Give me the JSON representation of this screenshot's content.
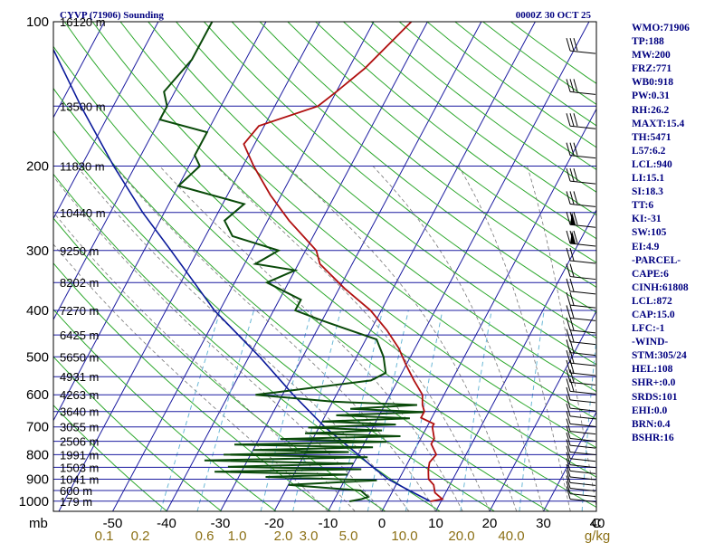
{
  "title_left": "CYVP (71906) Sounding",
  "title_right": "0000Z 30 OCT 25",
  "chart_data": {
    "type": "skew-t",
    "pressure_labels": [
      "100",
      "200",
      "300",
      "400",
      "500",
      "600",
      "700",
      "800",
      "900",
      "1000"
    ],
    "temperature_labels": [
      "-50",
      "-40",
      "-30",
      "-20",
      "-10",
      "0",
      "10",
      "20",
      "30",
      "40",
      "C"
    ],
    "mixing_ratio_labels": [
      "0.1",
      "0.2",
      "0.6",
      "1.0",
      "2.0",
      "3.0",
      "5.0",
      "10.0",
      "20.0",
      "40.0",
      "g/kg"
    ],
    "pressure_unit": "mb",
    "height_labels": [
      {
        "p": 100,
        "label": "16120 m"
      },
      {
        "p": 150,
        "label": "13500 m"
      },
      {
        "p": 200,
        "label": "11830 m"
      },
      {
        "p": 250,
        "label": "10440 m"
      },
      {
        "p": 300,
        "label": "9250 m"
      },
      {
        "p": 350,
        "label": "8202 m"
      },
      {
        "p": 400,
        "label": "7270 m"
      },
      {
        "p": 450,
        "label": "6425 m"
      },
      {
        "p": 500,
        "label": "5650 m"
      },
      {
        "p": 550,
        "label": "4931 m"
      },
      {
        "p": 600,
        "label": "4263 m"
      },
      {
        "p": 650,
        "label": "3640 m"
      },
      {
        "p": 700,
        "label": "3055 m"
      },
      {
        "p": 750,
        "label": "2506 m"
      },
      {
        "p": 800,
        "label": "1991 m"
      },
      {
        "p": 850,
        "label": "1503 m"
      },
      {
        "p": 900,
        "label": "1041 m"
      },
      {
        "p": 950,
        "label": "600 m"
      },
      {
        "p": 1000,
        "label": "179 m"
      }
    ],
    "temperature_profile": [
      [
        1001,
        8
      ],
      [
        990,
        10
      ],
      [
        960,
        8
      ],
      [
        925,
        7
      ],
      [
        900,
        5.5
      ],
      [
        880,
        5
      ],
      [
        860,
        4.5
      ],
      [
        830,
        4
      ],
      [
        800,
        4.5
      ],
      [
        760,
        2.5
      ],
      [
        740,
        2.5
      ],
      [
        700,
        1
      ],
      [
        690,
        1
      ],
      [
        670,
        -2
      ],
      [
        650,
        -2
      ],
      [
        630,
        -3
      ],
      [
        600,
        -4
      ],
      [
        560,
        -7
      ],
      [
        520,
        -10
      ],
      [
        480,
        -13
      ],
      [
        440,
        -17
      ],
      [
        400,
        -22
      ],
      [
        360,
        -29
      ],
      [
        320,
        -36
      ],
      [
        300,
        -38
      ],
      [
        260,
        -46
      ],
      [
        230,
        -52
      ],
      [
        200,
        -58
      ],
      [
        180,
        -62
      ],
      [
        165,
        -61
      ],
      [
        150,
        -52
      ],
      [
        140,
        -50
      ],
      [
        125,
        -47
      ],
      [
        100,
        -43
      ]
    ],
    "dewpoint_profile": [
      [
        1001,
        -7
      ],
      [
        990,
        -5
      ],
      [
        980,
        -4
      ],
      [
        950,
        -6
      ],
      [
        925,
        -20
      ],
      [
        905,
        -4
      ],
      [
        890,
        -25
      ],
      [
        880,
        -10
      ],
      [
        868,
        -35
      ],
      [
        858,
        -8
      ],
      [
        848,
        -33
      ],
      [
        835,
        -10
      ],
      [
        822,
        -38
      ],
      [
        810,
        -8
      ],
      [
        800,
        -35
      ],
      [
        790,
        -12
      ],
      [
        782,
        -30
      ],
      [
        772,
        -8
      ],
      [
        762,
        -34
      ],
      [
        752,
        -6
      ],
      [
        742,
        -26
      ],
      [
        732,
        -4
      ],
      [
        722,
        -22
      ],
      [
        712,
        -8
      ],
      [
        702,
        -22
      ],
      [
        692,
        -6
      ],
      [
        682,
        -20
      ],
      [
        672,
        -4
      ],
      [
        662,
        -18
      ],
      [
        652,
        -2
      ],
      [
        642,
        -16
      ],
      [
        630,
        -4
      ],
      [
        620,
        -20
      ],
      [
        600,
        -35
      ],
      [
        590,
        -30
      ],
      [
        560,
        -15
      ],
      [
        540,
        -13
      ],
      [
        500,
        -15
      ],
      [
        460,
        -18
      ],
      [
        420,
        -30
      ],
      [
        400,
        -36
      ],
      [
        380,
        -36
      ],
      [
        350,
        -44
      ],
      [
        330,
        -40
      ],
      [
        320,
        -48
      ],
      [
        300,
        -45
      ],
      [
        280,
        -55
      ],
      [
        260,
        -58
      ],
      [
        240,
        -56
      ],
      [
        220,
        -70
      ],
      [
        200,
        -68
      ],
      [
        190,
        -70
      ],
      [
        170,
        -70
      ],
      [
        160,
        -80
      ],
      [
        150,
        -80
      ],
      [
        140,
        -82
      ],
      [
        120,
        -80
      ],
      [
        100,
        -80
      ]
    ],
    "parcel_profile": [
      [
        1001,
        8
      ],
      [
        940,
        2
      ],
      [
        900,
        -2
      ],
      [
        850,
        -6
      ],
      [
        800,
        -10
      ],
      [
        700,
        -19
      ],
      [
        600,
        -28
      ],
      [
        500,
        -38
      ],
      [
        400,
        -51
      ],
      [
        300,
        -65
      ],
      [
        250,
        -74
      ],
      [
        200,
        -84
      ],
      [
        150,
        -96
      ],
      [
        100,
        -112
      ]
    ],
    "wind_barbs": "right-hand column, winds from the west-northwest increasing aloft",
    "side_panel": [
      "WMO:71906",
      "TP:188",
      "MW:200",
      "FRZ:771",
      "WB0:918",
      "PW:0.31",
      "RH:26.2",
      "MAXT:15.4",
      "TH:5471",
      "L57:6.2",
      "LCL:940",
      "LI:15.1",
      "SI:18.3",
      "TT:6",
      "KI:-31",
      "SW:105",
      "EI:4.9",
      "-PARCEL-",
      "CAPE:6",
      "CINH:61808",
      "LCL:872",
      "CAP:15.0",
      "LFC:-1",
      "-WIND-",
      "STM:305/24",
      "HEL:108",
      "SHR+:0.0",
      "SRDS:101",
      "EHI:0.0",
      "BRN:0.4",
      "BSHR:16"
    ]
  },
  "colors": {
    "isobar": "#1c1ca0",
    "isotherm": "#1c1ca0",
    "dry_adiabat": "#2ea82e",
    "moist_adiabat": "#6bb8d6",
    "mixing_ratio": "#777777",
    "temperature": "#b01010",
    "dewpoint": "#0a4a0a",
    "parcel": "#0a1a9a",
    "title": "#000080"
  }
}
